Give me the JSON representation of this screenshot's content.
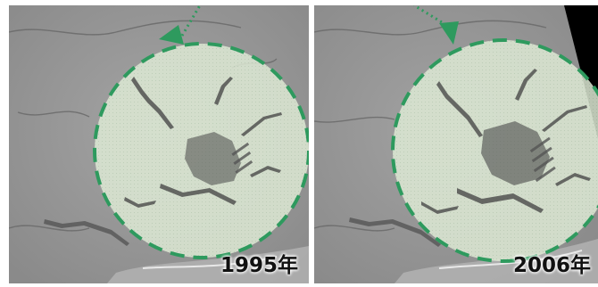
{
  "panels": [
    {
      "year_label": "1995年"
    },
    {
      "year_label": "2006年"
    }
  ],
  "icons": {
    "circle": "dashed-green-circle-icon",
    "arrow": "dotted-green-arrow-icon"
  },
  "colors": {
    "circle_stroke": "#2e9a5e",
    "circle_fill": "#dcebd2",
    "imagery_gray": "#9a9a9a",
    "dark_edge": "#000000"
  }
}
